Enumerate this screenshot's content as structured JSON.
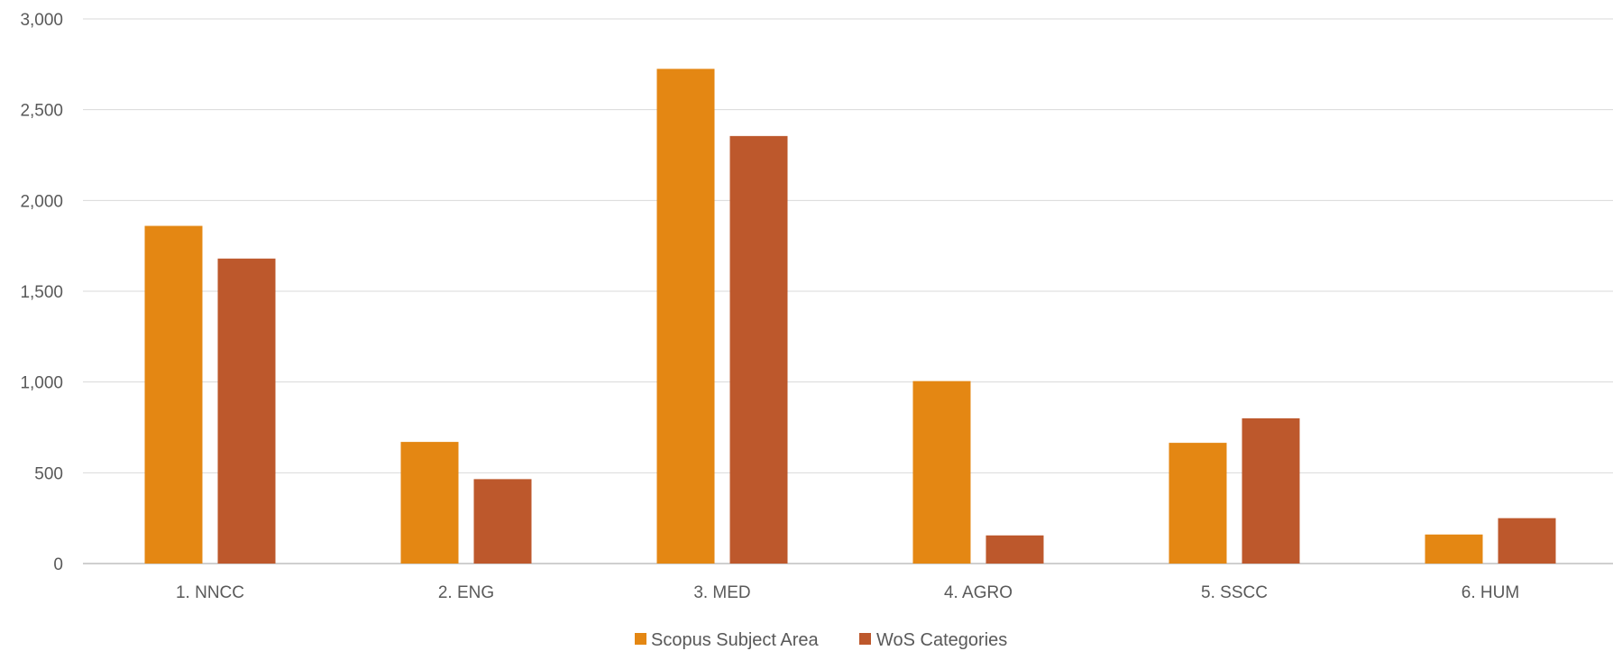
{
  "chart_data": {
    "type": "bar",
    "categories": [
      "1. NNCC",
      "2. ENG",
      "3. MED",
      "4. AGRO",
      "5. SSCC",
      "6. HUM"
    ],
    "series": [
      {
        "name": "Scopus Subject Area",
        "color": "#E48713",
        "values": [
          1860,
          670,
          2725,
          1005,
          665,
          160
        ]
      },
      {
        "name": "WoS Categories",
        "color": "#BD582C",
        "values": [
          1680,
          465,
          2355,
          155,
          800,
          250
        ]
      }
    ],
    "y_ticks": [
      "0",
      "500",
      "1,000",
      "1,500",
      "2,000",
      "2,500",
      "3,000"
    ],
    "ylim": [
      0,
      3000
    ],
    "grid": true,
    "legend_position": "bottom-center",
    "title": "",
    "xlabel": "",
    "ylabel": ""
  }
}
